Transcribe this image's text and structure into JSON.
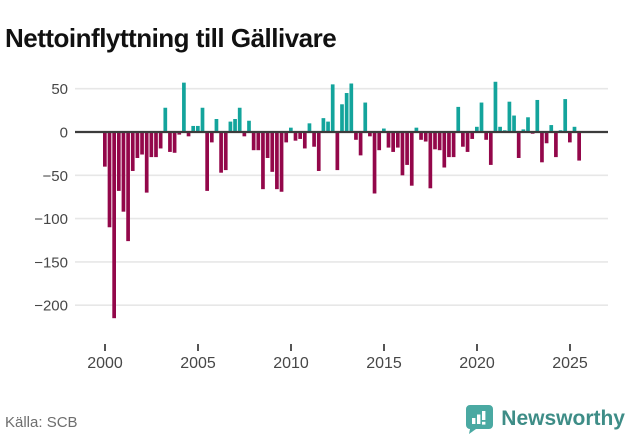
{
  "header": {
    "title": "Nettoinflyttning till Gällivare"
  },
  "footer": {
    "source_label": "Källa: SCB",
    "brand_name": "Newsworthy"
  },
  "colors": {
    "positive_bar": "#13a49c",
    "negative_bar": "#93074a",
    "zero_line": "#3c3c3c",
    "gridline": "#e7e7e7",
    "axis_text": "#474747",
    "title_text": "#111111",
    "source_text": "#6e6e6e",
    "brand_teal": "#3e8d87",
    "logo_bubble": "#4aa9a2"
  },
  "chart_data": {
    "type": "bar",
    "title": "Nettoinflyttning till Gällivare",
    "frequency": "quarterly",
    "start_year": 2000,
    "start_quarter": 1,
    "x_ticks": [
      2000,
      2005,
      2010,
      2015,
      2020,
      2025
    ],
    "y_ticks": [
      50,
      0,
      -50,
      -100,
      -150,
      -200
    ],
    "ylim": [
      -225,
      65
    ],
    "grid": true,
    "legend": "none",
    "series": [
      {
        "name": "Nettoinflyttning",
        "values": [
          -40,
          -110,
          -215,
          -68,
          -92,
          -126,
          -45,
          -30,
          -26,
          -70,
          -29,
          -29,
          -19,
          28,
          -23,
          -24,
          -3,
          57,
          -5,
          7,
          7,
          28,
          -68,
          -12,
          15,
          -47,
          -44,
          12,
          15,
          28,
          -5,
          13,
          -21,
          -21,
          -66,
          -30,
          -46,
          -66,
          -69,
          -12,
          5,
          -10,
          -8,
          -19,
          10,
          -17,
          -45,
          16,
          12,
          55,
          -44,
          32,
          45,
          56,
          -9,
          -27,
          34,
          -5,
          -71,
          -21,
          4,
          -18,
          -23,
          -18,
          -50,
          -38,
          -62,
          5,
          -9,
          -11,
          -65,
          -20,
          -21,
          -41,
          -29,
          -29,
          29,
          -17,
          -23,
          -8,
          6,
          34,
          -9,
          -38,
          58,
          6,
          2,
          35,
          19,
          -30,
          3,
          17,
          -2,
          37,
          -35,
          -13,
          8,
          -29,
          2,
          38,
          -12,
          6,
          -33
        ]
      }
    ]
  }
}
